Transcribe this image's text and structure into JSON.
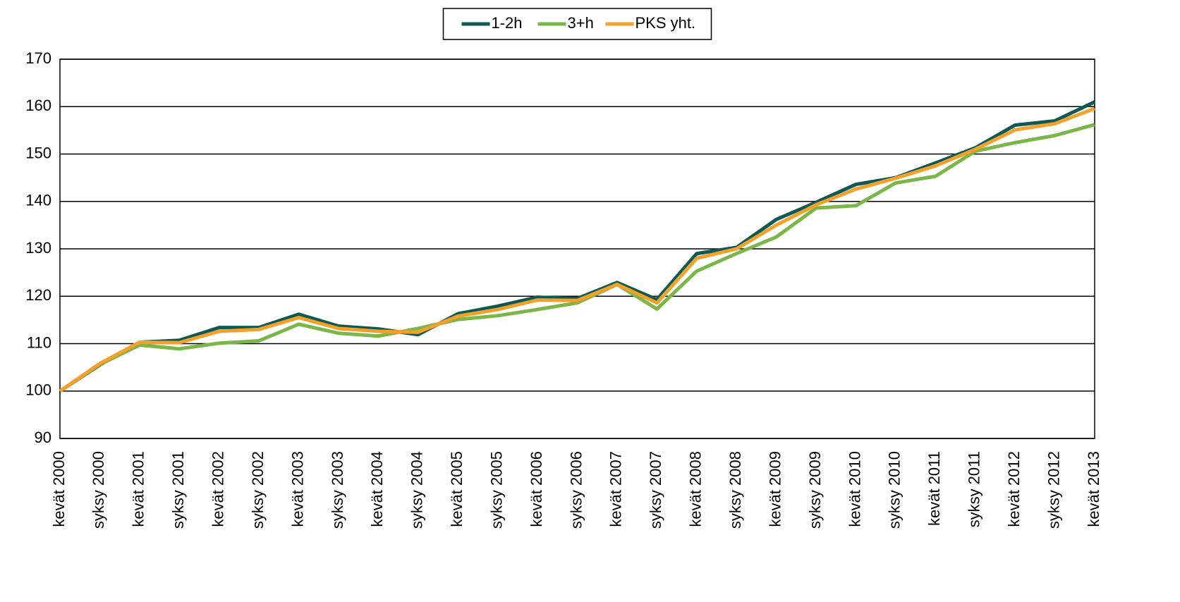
{
  "chart_data": {
    "type": "line",
    "categories": [
      "kevät 2000",
      "syksy 2000",
      "kevät 2001",
      "syksy 2001",
      "kevät 2002",
      "syksy 2002",
      "kevät 2003",
      "syksy 2003",
      "kevät 2004",
      "syksy 2004",
      "kevät 2005",
      "syksy 2005",
      "kevät 2006",
      "syksy 2006",
      "kevät 2007",
      "syksy 2007",
      "kevät 2008",
      "syksy 2008",
      "kevät 2009",
      "syksy 2009",
      "kevät 2010",
      "syksy 2010",
      "kevät 2011",
      "syksy 2011",
      "kevät 2012",
      "syksy 2012",
      "kevät 2013"
    ],
    "series": [
      {
        "name": "1-2h",
        "color": "#0e5a52",
        "values": [
          100,
          105.5,
          110.3,
          110.7,
          113.4,
          113.4,
          116.2,
          113.7,
          113.1,
          111.9,
          116.3,
          117.9,
          119.8,
          119.5,
          122.9,
          119.3,
          129,
          130.3,
          136.2,
          139.8,
          143.6,
          145,
          148.1,
          151.3,
          156.1,
          157,
          161
        ]
      },
      {
        "name": "3+h",
        "color": "#7ab648",
        "values": [
          100,
          105.6,
          109.7,
          108.9,
          110.1,
          110.6,
          114.1,
          112.2,
          111.6,
          113.2,
          115.1,
          115.9,
          117.2,
          118.6,
          122.5,
          117.3,
          125.3,
          129,
          132.5,
          138.6,
          139.1,
          143.9,
          145.3,
          150.6,
          152.4,
          153.9,
          156.2
        ]
      },
      {
        "name": "PKS yht.",
        "color": "#f7a028",
        "values": [
          100,
          105.8,
          110.3,
          110.2,
          112.6,
          113,
          115.5,
          113.2,
          112.6,
          112.4,
          115.8,
          117.2,
          119.2,
          119.1,
          122.5,
          118.6,
          128,
          130,
          135,
          139.3,
          142.6,
          144.9,
          147.5,
          151,
          155.1,
          156.4,
          159.6
        ]
      }
    ],
    "ylim": [
      90,
      170
    ],
    "yticks": [
      90,
      100,
      110,
      120,
      130,
      140,
      150,
      160,
      170
    ],
    "grid": true,
    "legend": "top"
  }
}
